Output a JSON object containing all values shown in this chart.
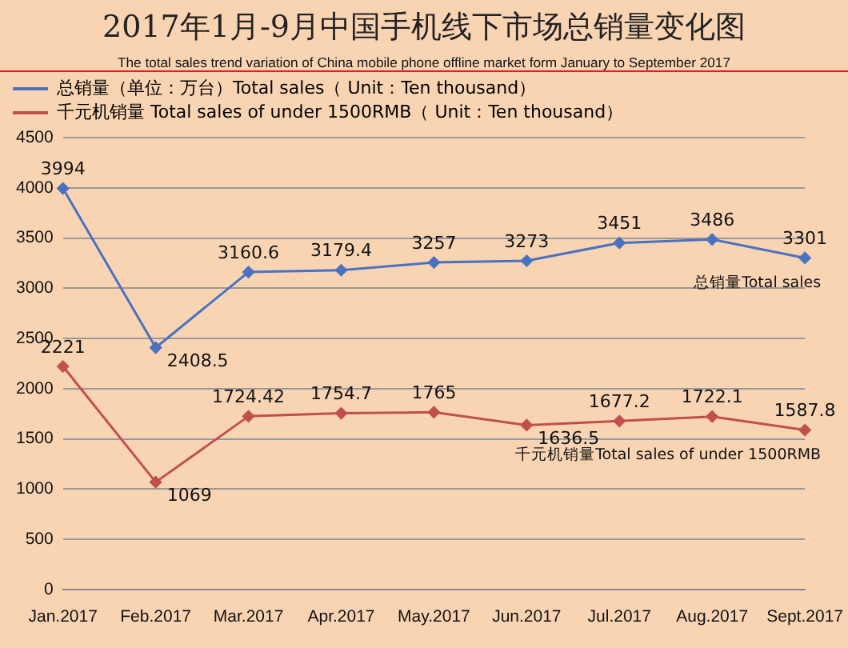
{
  "chart_data": {
    "type": "line",
    "title": "2017年1月-9月中国手机线下市场总销量变化图",
    "subtitle": "The total sales trend variation  of China mobile phone offline market form January  to September 2017",
    "categories": [
      "Jan.2017",
      "Feb.2017",
      "Mar.2017",
      "Apr.2017",
      "May.2017",
      "Jun.2017",
      "Jul.2017",
      "Aug.2017",
      "Sept.2017"
    ],
    "series": [
      {
        "name": "总销量（单位：万台）Total sales（ Unit：Ten thousand）",
        "color": "#4a72c0",
        "values": [
          3994,
          2408.5,
          3160.6,
          3179.4,
          3257,
          3273,
          3451,
          3486,
          3301
        ]
      },
      {
        "name": "千元机销量 Total sales of under 1500RMB（ Unit：Ten thousand）",
        "color": "#c0504d",
        "values": [
          2221,
          1069,
          1724.42,
          1754.7,
          1765,
          1636.5,
          1677.2,
          1722.1,
          1587.8
        ]
      }
    ],
    "ylim": [
      0,
      4500
    ],
    "yticks": [
      0,
      500,
      1000,
      1500,
      2000,
      2500,
      3000,
      3500,
      4000,
      4500
    ],
    "grid": "y",
    "legend": "top left",
    "marker": "diamond",
    "line_style": "solid",
    "data_labels": true,
    "annotations": [
      "总销量Total sales",
      "千元机销量Total sales of under 1500RMB"
    ]
  }
}
